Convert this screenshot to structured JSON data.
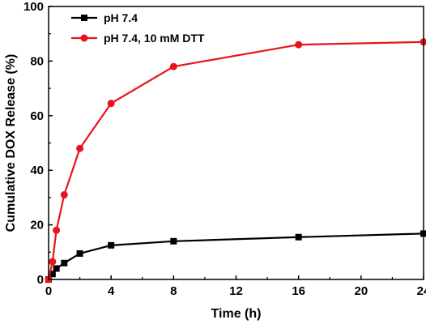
{
  "chart_data": {
    "type": "line",
    "title": "",
    "xlabel": "Time (h)",
    "ylabel": "Cumulative DOX Release (%)",
    "xlim": [
      0,
      24
    ],
    "ylim": [
      0,
      100
    ],
    "xticks": [
      0,
      4,
      8,
      12,
      16,
      20,
      24
    ],
    "yticks": [
      0,
      20,
      40,
      60,
      80,
      100
    ],
    "grid": false,
    "legend_position": "top-left",
    "series": [
      {
        "name": "pH 7.4",
        "color": "#000000",
        "marker": "square",
        "x": [
          0,
          0.25,
          0.5,
          1,
          2,
          4,
          8,
          16,
          24
        ],
        "y": [
          0,
          2.0,
          4.0,
          6.0,
          9.5,
          12.5,
          14.0,
          15.5,
          16.8
        ]
      },
      {
        "name": "pH 7.4, 10 mM DTT",
        "color": "#e8141b",
        "marker": "circle",
        "x": [
          0,
          0.25,
          0.5,
          1,
          2,
          4,
          8,
          16,
          24
        ],
        "y": [
          0,
          6.5,
          18.0,
          31.0,
          48.0,
          64.5,
          78.0,
          86.0,
          87.0
        ]
      }
    ]
  }
}
